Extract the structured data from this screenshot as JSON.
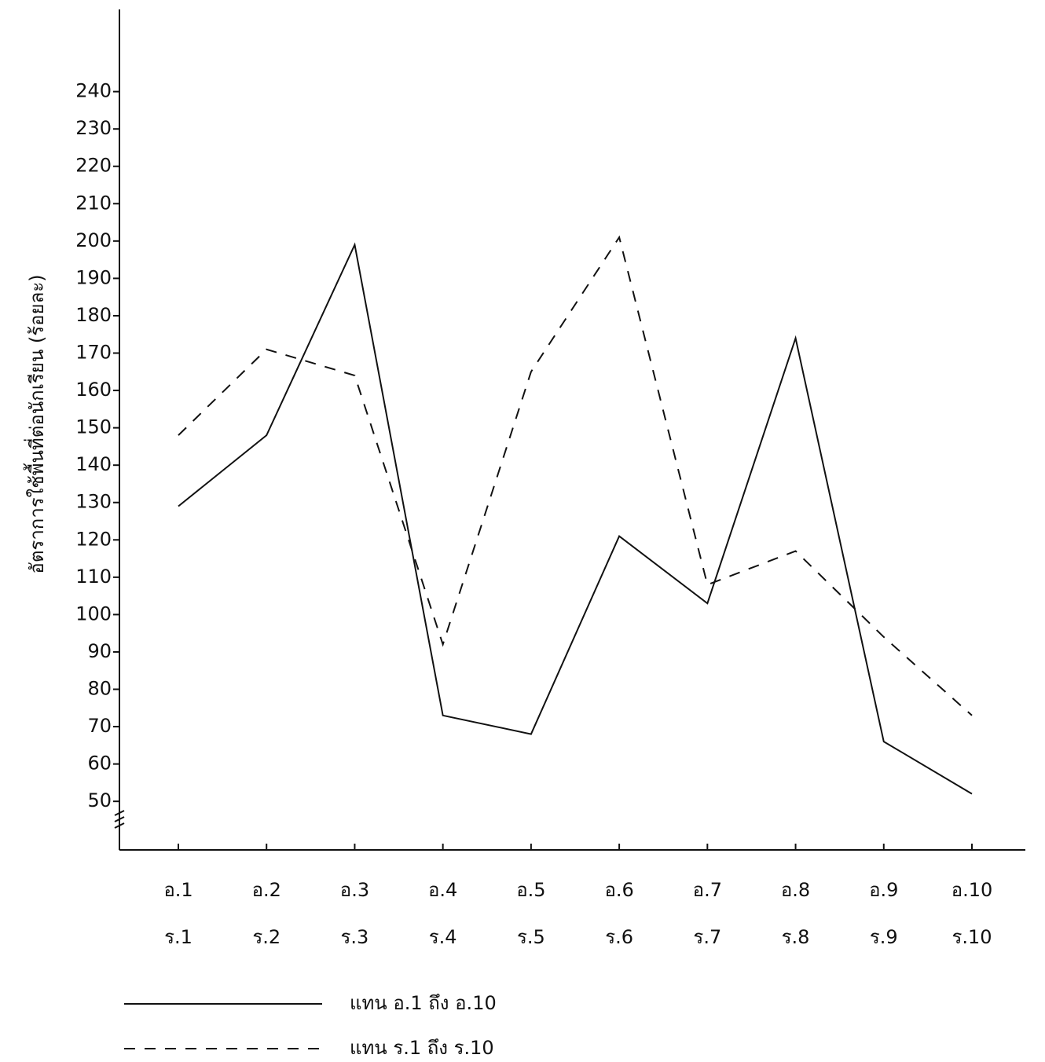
{
  "chart_data": {
    "type": "line",
    "y_label": "อัตราการใช้พื้นที่ต่อนักเรียน (ร้อยละ)",
    "categories": [
      "อ.1",
      "อ.2",
      "อ.3",
      "อ.4",
      "อ.5",
      "อ.6",
      "อ.7",
      "อ.8",
      "อ.9",
      "อ.10"
    ],
    "categories_row2": [
      "ร.1",
      "ร.2",
      "ร.3",
      "ร.4",
      "ร.5",
      "ร.6",
      "ร.7",
      "ร.8",
      "ร.9",
      "ร.10"
    ],
    "series": [
      {
        "name": "แทน อ.1 ถึง อ.10",
        "color": "#111111",
        "style": "solid",
        "values": [
          129,
          148,
          199,
          73,
          68,
          121,
          103,
          174,
          66,
          52
        ]
      },
      {
        "name": "แทน ร.1 ถึง ร.10",
        "color": "#111111",
        "style": "dashed",
        "values": [
          148,
          171,
          164,
          92,
          165,
          201,
          108,
          117,
          94,
          73
        ]
      }
    ],
    "ylim": [
      37,
      262
    ],
    "yticks": [
      50,
      60,
      70,
      80,
      90,
      100,
      110,
      120,
      130,
      140,
      150,
      160,
      170,
      180,
      190,
      200,
      210,
      220,
      230,
      240
    ],
    "grid": false
  }
}
